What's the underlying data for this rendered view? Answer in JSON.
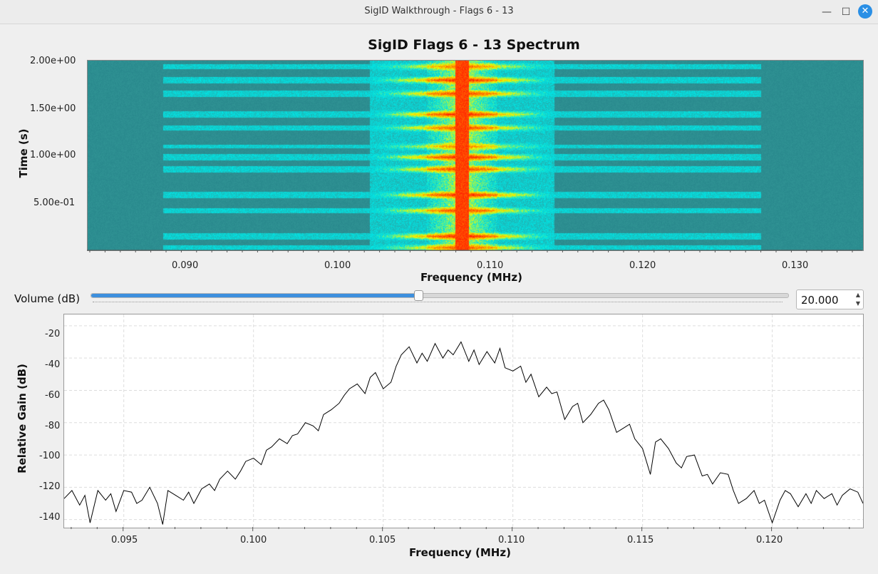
{
  "window": {
    "title": "SigID Walkthrough - Flags 6 - 13",
    "minimize_glyph": "—",
    "maximize_glyph": "☐",
    "close_glyph": "✕"
  },
  "waterfall": {
    "title": "SigID Flags 6 - 13 Spectrum",
    "xlabel": "Frequency (MHz)",
    "ylabel": "Time (s)",
    "x_ticks": [
      "0.090",
      "0.100",
      "0.110",
      "0.120",
      "0.130"
    ],
    "y_ticks": [
      "2.00e+00",
      "1.50e+00",
      "1.00e+00",
      "5.00e-01"
    ]
  },
  "volume": {
    "label": "Volume (dB)",
    "value": "20.000",
    "slider_fraction": 0.468
  },
  "chart_data": {
    "type": "line",
    "title": "",
    "xlabel": "Frequency (MHz)",
    "ylabel": "Relative Gain (dB)",
    "x_ticks": [
      "0.095",
      "0.100",
      "0.105",
      "0.110",
      "0.115",
      "0.120"
    ],
    "y_ticks": [
      "-20",
      "-40",
      "-60",
      "-80",
      "-100",
      "-120",
      "-140"
    ],
    "xlim": [
      0.0927,
      0.1235
    ],
    "ylim": [
      -145,
      -13
    ],
    "grid": true,
    "x": [
      0.0927,
      0.093,
      0.0933,
      0.0935,
      0.0937,
      0.094,
      0.0943,
      0.0945,
      0.0947,
      0.095,
      0.0953,
      0.0955,
      0.0957,
      0.096,
      0.0963,
      0.0965,
      0.0967,
      0.097,
      0.0973,
      0.0975,
      0.0977,
      0.098,
      0.0983,
      0.0985,
      0.0987,
      0.099,
      0.0993,
      0.0995,
      0.0997,
      0.1,
      0.1003,
      0.1005,
      0.1007,
      0.101,
      0.1013,
      0.1015,
      0.1017,
      0.102,
      0.1023,
      0.1025,
      0.1027,
      0.103,
      0.1033,
      0.1035,
      0.1037,
      0.104,
      0.1043,
      0.1045,
      0.1047,
      0.105,
      0.1053,
      0.1055,
      0.1057,
      0.106,
      0.1063,
      0.1065,
      0.1067,
      0.107,
      0.1073,
      0.1075,
      0.1077,
      0.108,
      0.1083,
      0.1085,
      0.1087,
      0.109,
      0.1093,
      0.1095,
      0.1097,
      0.11,
      0.1103,
      0.1105,
      0.1107,
      0.111,
      0.1113,
      0.1115,
      0.1117,
      0.112,
      0.1123,
      0.1125,
      0.1127,
      0.113,
      0.1133,
      0.1135,
      0.1137,
      0.114,
      0.1143,
      0.1145,
      0.1147,
      0.115,
      0.1153,
      0.1155,
      0.1157,
      0.116,
      0.1163,
      0.1165,
      0.1167,
      0.117,
      0.1173,
      0.1175,
      0.1177,
      0.118,
      0.1183,
      0.1185,
      0.1187,
      0.119,
      0.1193,
      0.1195,
      0.1197,
      0.12,
      0.1203,
      0.1205,
      0.1207,
      0.121,
      0.1213,
      0.1215,
      0.1217,
      0.122,
      0.1223,
      0.1225,
      0.1227,
      0.123,
      0.1233,
      0.1235
    ],
    "y": [
      -127,
      -122,
      -131,
      -125,
      -142,
      -122,
      -128,
      -124,
      -135,
      -122,
      -123,
      -130,
      -128,
      -120,
      -130,
      -143,
      -122,
      -125,
      -128,
      -123,
      -130,
      -121,
      -118,
      -122,
      -115,
      -110,
      -115,
      -110,
      -104,
      -102,
      -106,
      -97,
      -95,
      -90,
      -93,
      -88,
      -87,
      -80,
      -82,
      -85,
      -75,
      -72,
      -68,
      -63,
      -59,
      -56,
      -62,
      -52,
      -49,
      -59,
      -55,
      -45,
      -38,
      -33,
      -43,
      -37,
      -42,
      -31,
      -40,
      -35,
      -38,
      -30,
      -42,
      -35,
      -44,
      -36,
      -43,
      -34,
      -46,
      -48,
      -45,
      -55,
      -50,
      -64,
      -58,
      -62,
      -61,
      -78,
      -70,
      -68,
      -80,
      -75,
      -68,
      -66,
      -72,
      -86,
      -83,
      -81,
      -90,
      -96,
      -112,
      -92,
      -90,
      -96,
      -105,
      -108,
      -101,
      -100,
      -113,
      -112,
      -118,
      -111,
      -112,
      -122,
      -130,
      -127,
      -122,
      -130,
      -128,
      -142,
      -128,
      -122,
      -124,
      -132,
      -124,
      -130,
      -122,
      -127,
      -124,
      -131,
      -125,
      -121,
      -123,
      -130
    ],
    "series": [
      {
        "values": "see y"
      }
    ]
  }
}
